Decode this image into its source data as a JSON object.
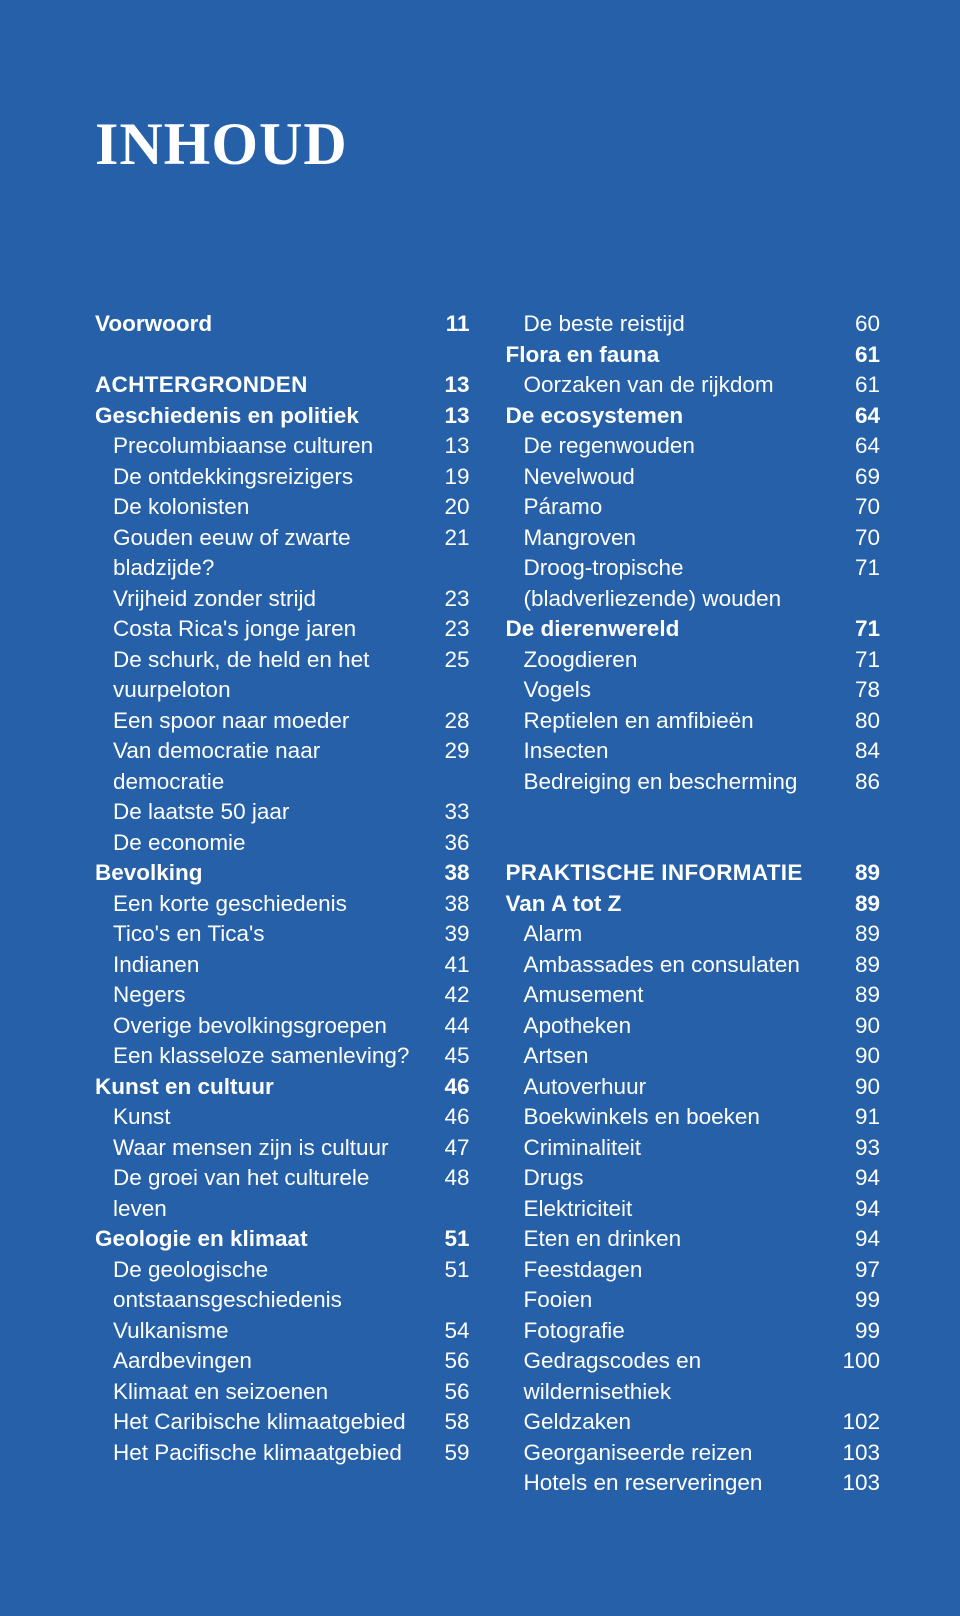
{
  "colors": {
    "background": "#2560a8",
    "text": "#ffffff"
  },
  "typography": {
    "title_fontsize": 60,
    "body_fontsize": 22.5,
    "line_height": 30.5
  },
  "title": "INHOUD",
  "columns": [
    {
      "entries": [
        {
          "label": "Voorwoord",
          "page": "11",
          "level": "chapter"
        },
        {
          "spacer": true
        },
        {
          "label": "ACHTERGRONDEN",
          "page": "13",
          "level": "section"
        },
        {
          "label": "Geschiedenis en politiek",
          "page": "13",
          "level": "chapter"
        },
        {
          "label": "Precolumbiaanse culturen",
          "page": "13",
          "level": "sub"
        },
        {
          "label": "De ontdekkingsreizigers",
          "page": "19",
          "level": "sub"
        },
        {
          "label": "De kolonisten",
          "page": "20",
          "level": "sub"
        },
        {
          "label": "Gouden eeuw of zwarte bladzijde?",
          "page": "21",
          "level": "sub"
        },
        {
          "label": "Vrijheid zonder strijd",
          "page": "23",
          "level": "sub"
        },
        {
          "label": "Costa Rica's jonge jaren",
          "page": "23",
          "level": "sub"
        },
        {
          "label": "De schurk, de held en het vuurpeloton",
          "page": "25",
          "level": "sub"
        },
        {
          "label": "Een spoor naar moeder",
          "page": "28",
          "level": "sub"
        },
        {
          "label": "Van democratie naar democratie",
          "page": "29",
          "level": "sub"
        },
        {
          "label": "De laatste 50 jaar",
          "page": "33",
          "level": "sub"
        },
        {
          "label": "De economie",
          "page": "36",
          "level": "sub"
        },
        {
          "label": "Bevolking",
          "page": "38",
          "level": "chapter"
        },
        {
          "label": "Een korte geschiedenis",
          "page": "38",
          "level": "sub"
        },
        {
          "label": "Tico's en Tica's",
          "page": "39",
          "level": "sub"
        },
        {
          "label": "Indianen",
          "page": "41",
          "level": "sub"
        },
        {
          "label": "Negers",
          "page": "42",
          "level": "sub"
        },
        {
          "label": "Overige bevolkingsgroepen",
          "page": "44",
          "level": "sub"
        },
        {
          "label": "Een klasseloze samenleving?",
          "page": "45",
          "level": "sub"
        },
        {
          "label": "Kunst en cultuur",
          "page": "46",
          "level": "chapter"
        },
        {
          "label": "Kunst",
          "page": "46",
          "level": "sub"
        },
        {
          "label": "Waar mensen zijn is cultuur",
          "page": "47",
          "level": "sub"
        },
        {
          "label": "De groei van het culturele leven",
          "page": "48",
          "level": "sub"
        },
        {
          "label": "Geologie en klimaat",
          "page": "51",
          "level": "chapter"
        },
        {
          "label": "De geologische ontstaansgeschiedenis",
          "page": "51",
          "level": "sub"
        },
        {
          "label": "Vulkanisme",
          "page": "54",
          "level": "sub"
        },
        {
          "label": "Aardbevingen",
          "page": "56",
          "level": "sub"
        },
        {
          "label": "Klimaat en seizoenen",
          "page": "56",
          "level": "sub"
        },
        {
          "label": "Het Caribische klimaatgebied",
          "page": "58",
          "level": "sub"
        },
        {
          "label": "Het Pacifische klimaatgebied",
          "page": "59",
          "level": "sub"
        }
      ]
    },
    {
      "entries": [
        {
          "label": "De beste reistijd",
          "page": "60",
          "level": "sub"
        },
        {
          "label": "Flora en fauna",
          "page": "61",
          "level": "chapter"
        },
        {
          "label": "Oorzaken van de rijkdom",
          "page": "61",
          "level": "sub"
        },
        {
          "label": "De ecosystemen",
          "page": "64",
          "level": "chapter"
        },
        {
          "label": "De regenwouden",
          "page": "64",
          "level": "sub"
        },
        {
          "label": "Nevelwoud",
          "page": "69",
          "level": "sub"
        },
        {
          "label": "Páramo",
          "page": "70",
          "level": "sub"
        },
        {
          "label": "Mangroven",
          "page": "70",
          "level": "sub"
        },
        {
          "label": "Droog-tropische (bladverliezende) wouden",
          "page": "71",
          "level": "sub"
        },
        {
          "label": "De dierenwereld",
          "page": "71",
          "level": "chapter"
        },
        {
          "label": "Zoogdieren",
          "page": "71",
          "level": "sub"
        },
        {
          "label": "Vogels",
          "page": "78",
          "level": "sub"
        },
        {
          "label": "Reptielen en amfibieën",
          "page": "80",
          "level": "sub"
        },
        {
          "label": "Insecten",
          "page": "84",
          "level": "sub"
        },
        {
          "label": "Bedreiging en bescherming",
          "page": "86",
          "level": "sub"
        },
        {
          "spacer": true
        },
        {
          "spacer": true
        },
        {
          "label": "PRAKTISCHE INFORMATIE",
          "page": "89",
          "level": "section"
        },
        {
          "label": "Van A tot Z",
          "page": "89",
          "level": "chapter"
        },
        {
          "label": "Alarm",
          "page": "89",
          "level": "sub"
        },
        {
          "label": "Ambassades en consulaten",
          "page": "89",
          "level": "sub"
        },
        {
          "label": "Amusement",
          "page": "89",
          "level": "sub"
        },
        {
          "label": "Apotheken",
          "page": "90",
          "level": "sub"
        },
        {
          "label": "Artsen",
          "page": "90",
          "level": "sub"
        },
        {
          "label": "Autoverhuur",
          "page": "90",
          "level": "sub"
        },
        {
          "label": "Boekwinkels en boeken",
          "page": "91",
          "level": "sub"
        },
        {
          "label": "Criminaliteit",
          "page": "93",
          "level": "sub"
        },
        {
          "label": "Drugs",
          "page": "94",
          "level": "sub"
        },
        {
          "label": "Elektriciteit",
          "page": "94",
          "level": "sub"
        },
        {
          "label": "Eten en drinken",
          "page": "94",
          "level": "sub"
        },
        {
          "label": "Feestdagen",
          "page": "97",
          "level": "sub"
        },
        {
          "label": "Fooien",
          "page": "99",
          "level": "sub"
        },
        {
          "label": "Fotografie",
          "page": "99",
          "level": "sub"
        },
        {
          "label": "Gedragscodes en wildernisethiek",
          "page": "100",
          "level": "sub"
        },
        {
          "label": "Geldzaken",
          "page": "102",
          "level": "sub"
        },
        {
          "label": "Georganiseerde reizen",
          "page": "103",
          "level": "sub"
        },
        {
          "label": "Hotels en reserveringen",
          "page": "103",
          "level": "sub"
        }
      ]
    }
  ]
}
